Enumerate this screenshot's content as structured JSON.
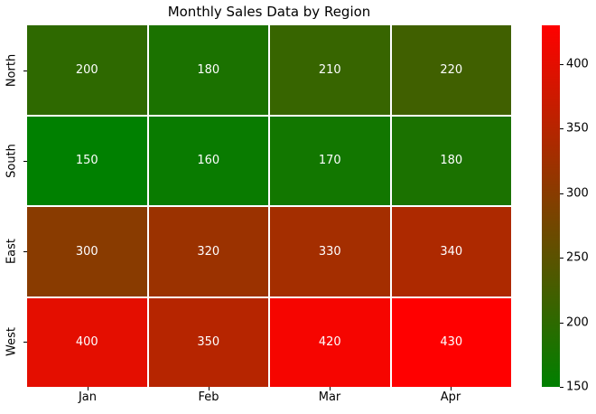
{
  "figure": {
    "background": "#ffffff",
    "text_color": "#000000"
  },
  "chart_data": {
    "type": "heatmap",
    "title": "Monthly Sales Data by Region",
    "rows": [
      "North",
      "South",
      "East",
      "West"
    ],
    "columns": [
      "Jan",
      "Feb",
      "Mar",
      "Apr"
    ],
    "values": [
      [
        200,
        180,
        210,
        220
      ],
      [
        150,
        160,
        170,
        180
      ],
      [
        300,
        320,
        330,
        340
      ],
      [
        400,
        350,
        420,
        430
      ]
    ],
    "vmin": 150,
    "vmax": 430,
    "colormap_low": "#008000",
    "colormap_high": "#ff0000",
    "annotation_color": "#ffffff",
    "grid_line_color": "#ffffff",
    "colorbar_ticks": [
      150,
      200,
      250,
      300,
      350,
      400
    ],
    "colorbar_position": "right",
    "grid": false
  }
}
